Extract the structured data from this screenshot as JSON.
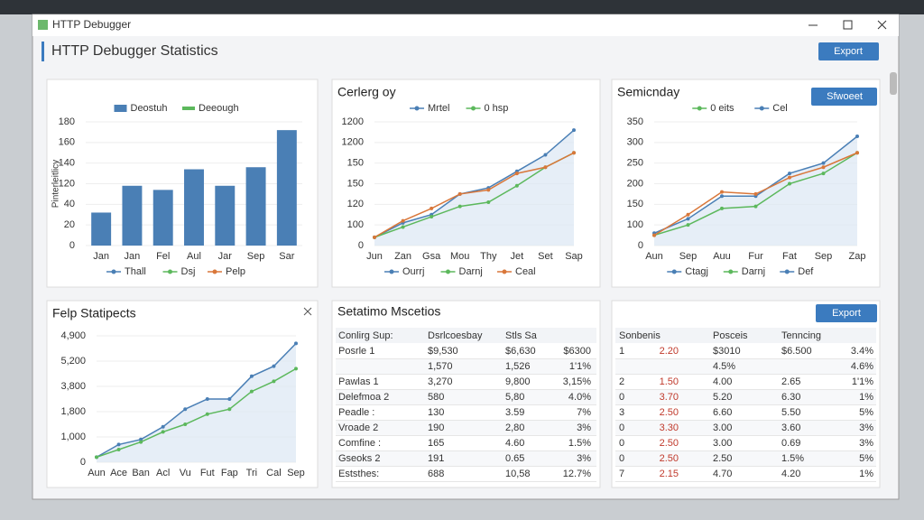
{
  "window": {
    "title": "HTTP Debugger"
  },
  "header": {
    "title": "HTTP Debugger Statistics",
    "button": "Export"
  },
  "chart_data": [
    {
      "type": "bar",
      "y_label": "Pinterleitlicy",
      "categories": [
        "Jan",
        "Jan",
        "Fel",
        "Aul",
        "Jar",
        "Sep",
        "Sar"
      ],
      "series": [
        {
          "name": "Deostuh",
          "color": "#4a7fb5",
          "values": [
            1.6,
            2.9,
            2.7,
            3.7,
            2.9,
            3.8,
            5.6
          ]
        }
      ],
      "extra_legend": [
        {
          "name": "Deeough",
          "color": "#5cb85c"
        }
      ],
      "bottom_legend": [
        {
          "name": "Thall",
          "color": "#4a7fb5"
        },
        {
          "name": "Dsj",
          "color": "#5cb85c"
        },
        {
          "name": "Pelp",
          "color": "#d9773a"
        }
      ],
      "ylim": [
        0,
        6
      ],
      "yticks": [
        {
          "value": 0,
          "label": "0"
        },
        {
          "value": 1,
          "label": "20"
        },
        {
          "value": 2,
          "label": "40"
        },
        {
          "value": 3,
          "label": "120"
        },
        {
          "value": 4,
          "label": "140"
        },
        {
          "value": 5,
          "label": "160"
        },
        {
          "value": 6,
          "label": "180"
        }
      ]
    },
    {
      "type": "line",
      "title": "Cerlerg oy",
      "categories": [
        "Jun",
        "Zan",
        "Gsa",
        "Mou",
        "Thy",
        "Jet",
        "Set",
        "Sap"
      ],
      "series": [
        {
          "name": "Mrtel",
          "color": "#4a7fb5",
          "values": [
            0.4,
            1.1,
            1.5,
            2.5,
            2.8,
            3.6,
            4.4,
            5.6
          ]
        },
        {
          "name": "0 hsp",
          "color": "#5cb85c",
          "values": [
            0.4,
            0.9,
            1.4,
            1.9,
            2.1,
            2.9,
            3.8,
            4.5
          ]
        },
        {
          "color": "#d9773a",
          "values": [
            0.4,
            1.2,
            1.8,
            2.5,
            2.7,
            3.5,
            3.8,
            4.5
          ]
        }
      ],
      "bottom_legend": [
        {
          "name": "Ourrj",
          "color": "#4a7fb5"
        },
        {
          "name": "Darnj",
          "color": "#5cb85c"
        },
        {
          "name": "Ceal",
          "color": "#d9773a"
        }
      ],
      "ylim": [
        0,
        6
      ],
      "yticks": [
        {
          "value": 0,
          "label": "0"
        },
        {
          "value": 1,
          "label": "100"
        },
        {
          "value": 2,
          "label": "120"
        },
        {
          "value": 3,
          "label": "150"
        },
        {
          "value": 4,
          "label": "150"
        },
        {
          "value": 5,
          "label": "1200"
        },
        {
          "value": 6,
          "label": "1200"
        }
      ]
    },
    {
      "type": "line",
      "title": "Semicnday",
      "button": "Sfwoeet",
      "categories": [
        "Aun",
        "Sep",
        "Auu",
        "Fur",
        "Fat",
        "Sep",
        "Zap"
      ],
      "series": [
        {
          "name": "0 eits",
          "color": "#5cb85c",
          "values": [
            0.5,
            1.0,
            1.8,
            1.9,
            3.0,
            3.5,
            4.5
          ]
        },
        {
          "name": "Cel",
          "color": "#4a7fb5",
          "values": [
            0.6,
            1.3,
            2.4,
            2.4,
            3.5,
            4.0,
            5.3
          ]
        },
        {
          "color": "#d9773a",
          "values": [
            0.5,
            1.5,
            2.6,
            2.5,
            3.3,
            3.8,
            4.5
          ]
        }
      ],
      "bottom_legend": [
        {
          "name": "Ctagj",
          "color": "#4a7fb5"
        },
        {
          "name": "Darnj",
          "color": "#5cb85c"
        },
        {
          "name": "Def",
          "color": "#4a7fb5"
        }
      ],
      "ylim": [
        0,
        6
      ],
      "yticks": [
        {
          "value": 0,
          "label": "0"
        },
        {
          "value": 1,
          "label": "100"
        },
        {
          "value": 2,
          "label": "150"
        },
        {
          "value": 3,
          "label": "200"
        },
        {
          "value": 4,
          "label": "250"
        },
        {
          "value": 5,
          "label": "300"
        },
        {
          "value": 6,
          "label": "350"
        }
      ]
    },
    {
      "type": "line",
      "title": "Felp Statipects",
      "categories": [
        "Aun",
        "Ace",
        "Ban",
        "Acl",
        "Vu",
        "Fut",
        "Fap",
        "Tri",
        "Cal",
        "Sep"
      ],
      "series": [
        {
          "color": "#4a7fb5",
          "values": [
            0.2,
            0.7,
            0.9,
            1.4,
            2.1,
            2.5,
            2.5,
            3.4,
            3.8,
            4.7
          ]
        },
        {
          "color": "#5cb85c",
          "values": [
            0.2,
            0.5,
            0.8,
            1.2,
            1.5,
            1.9,
            2.1,
            2.8,
            3.2,
            3.7
          ]
        }
      ],
      "ylim": [
        0,
        5
      ],
      "yticks": [
        {
          "value": 0,
          "label": "0"
        },
        {
          "value": 1,
          "label": "1,000"
        },
        {
          "value": 2,
          "label": "1,800"
        },
        {
          "value": 3,
          "label": "3,800"
        },
        {
          "value": 4,
          "label": "5,200"
        },
        {
          "value": 5,
          "label": "4,900"
        }
      ]
    }
  ],
  "tables": [
    {
      "title": "Setatimo Mscetios",
      "header": [
        "Conlirg Sup:",
        "Dsrlcoesbay",
        "Stls Sa",
        null
      ],
      "rows": [
        [
          "Posrle 1",
          "$9,530",
          "$6,630",
          "$6300"
        ],
        [
          null,
          "1,570",
          "1,526",
          "1'1%"
        ],
        [
          "Pawlas 1",
          "3,270",
          "9,800",
          "3,15%"
        ],
        [
          "Delefmoa 2",
          "580",
          "5,80",
          "4.0%"
        ],
        [
          "Peadle :",
          "130",
          "3.59",
          "7%"
        ],
        [
          "Vroade 2",
          "190",
          "2,80",
          "3%"
        ],
        [
          "Comfine :",
          "165",
          "4.60",
          "1.5%"
        ],
        [
          "Gseoks 2",
          "191",
          "0.65",
          "3%"
        ],
        [
          "Eststhes:",
          "688",
          "10,58",
          "12.7%"
        ]
      ]
    },
    {
      "button": "Export",
      "header": [
        "Sonbenis",
        null,
        "Posceis",
        "Tenncing",
        null
      ],
      "rows": [
        [
          "1",
          "2.20",
          "$3010",
          "$6.500",
          "3.4%"
        ],
        [
          null,
          null,
          "4.5%",
          null,
          "4.6%"
        ],
        [
          "2",
          "1.50",
          "4.00",
          "2.65",
          "1'1%"
        ],
        [
          "0",
          "3.70",
          "5.20",
          "6.30",
          "1%"
        ],
        [
          "3",
          "2.50",
          "6.60",
          "5.50",
          "5%"
        ],
        [
          "0",
          "3.30",
          "3.00",
          "3.60",
          "3%"
        ],
        [
          "0",
          "2.50",
          "3.00",
          "0.69",
          "3%"
        ],
        [
          "0",
          "2.50",
          "2.50",
          "1.5%",
          "5%"
        ],
        [
          "7",
          "2.15",
          "4.70",
          "4.20",
          "1%"
        ]
      ]
    }
  ]
}
